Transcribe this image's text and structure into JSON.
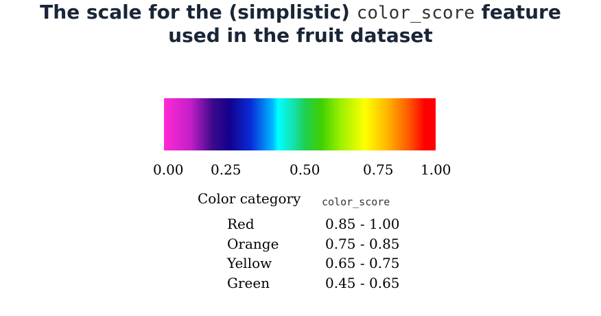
{
  "title": {
    "line1_pre": "The scale for the (simplistic) ",
    "line1_code": "color_score",
    "line1_post": " feature",
    "line2": "used in the fruit dataset"
  },
  "scale": {
    "ticks": [
      "0.00",
      "0.25",
      "0.50",
      "0.75",
      "1.00"
    ]
  },
  "table": {
    "headers": {
      "category": "Color category",
      "score": "color_score"
    },
    "rows": [
      {
        "category": "Red",
        "range": "0.85 - 1.00"
      },
      {
        "category": "Orange",
        "range": "0.75 - 0.85"
      },
      {
        "category": "Yellow",
        "range": "0.65 - 0.75"
      },
      {
        "category": "Green",
        "range": "0.45 - 0.65"
      }
    ]
  }
}
